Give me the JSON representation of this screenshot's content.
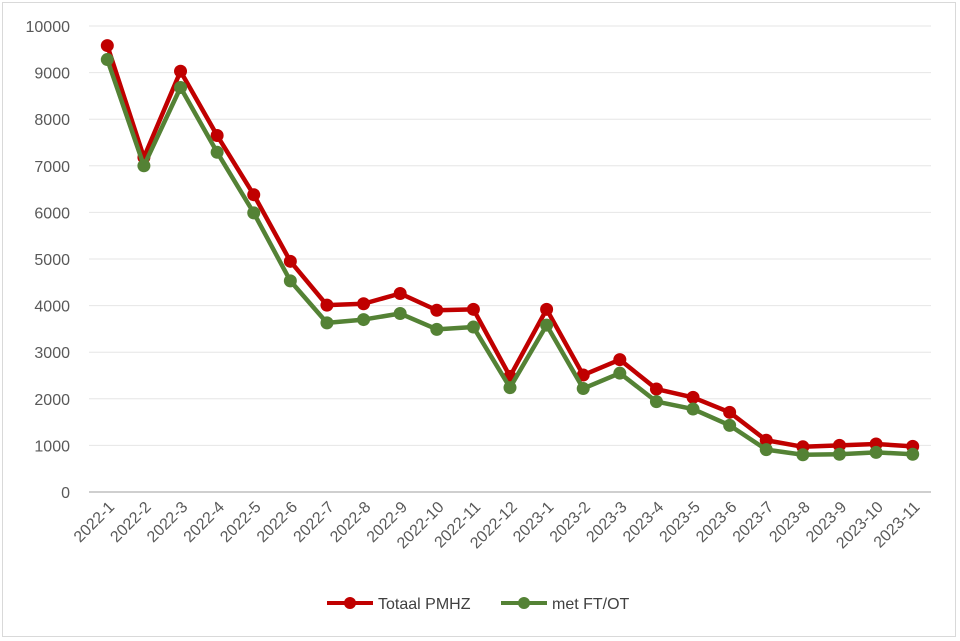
{
  "chart_data": {
    "type": "line",
    "title": "",
    "xlabel": "",
    "ylabel": "",
    "ylim": [
      0,
      10000
    ],
    "yticks": [
      0,
      1000,
      2000,
      3000,
      4000,
      5000,
      6000,
      7000,
      8000,
      9000,
      10000
    ],
    "grid": "horizontal",
    "legend": "bottom",
    "categories": [
      "2022-1",
      "2022-2",
      "2022-3",
      "2022-4",
      "2022-5",
      "2022-6",
      "2022-7",
      "2022-8",
      "2022-9",
      "2022-10",
      "2022-11",
      "2022-12",
      "2023-1",
      "2023-2",
      "2023-3",
      "2023-4",
      "2023-5",
      "2023-6",
      "2023-7",
      "2023-8",
      "2023-9",
      "2023-10",
      "2023-11"
    ],
    "series": [
      {
        "name": "Totaal PMHZ",
        "color": "#c00000",
        "values": [
          9580,
          7180,
          9030,
          7650,
          6380,
          4950,
          4010,
          4040,
          4260,
          3900,
          3920,
          2480,
          3920,
          2510,
          2840,
          2210,
          2030,
          1710,
          1110,
          970,
          1000,
          1030,
          980
        ]
      },
      {
        "name": "met FT/OT",
        "color": "#548235",
        "values": [
          9280,
          7000,
          8680,
          7290,
          5990,
          4530,
          3630,
          3700,
          3830,
          3490,
          3540,
          2240,
          3580,
          2220,
          2550,
          1940,
          1780,
          1430,
          910,
          800,
          810,
          850,
          810
        ]
      }
    ]
  }
}
